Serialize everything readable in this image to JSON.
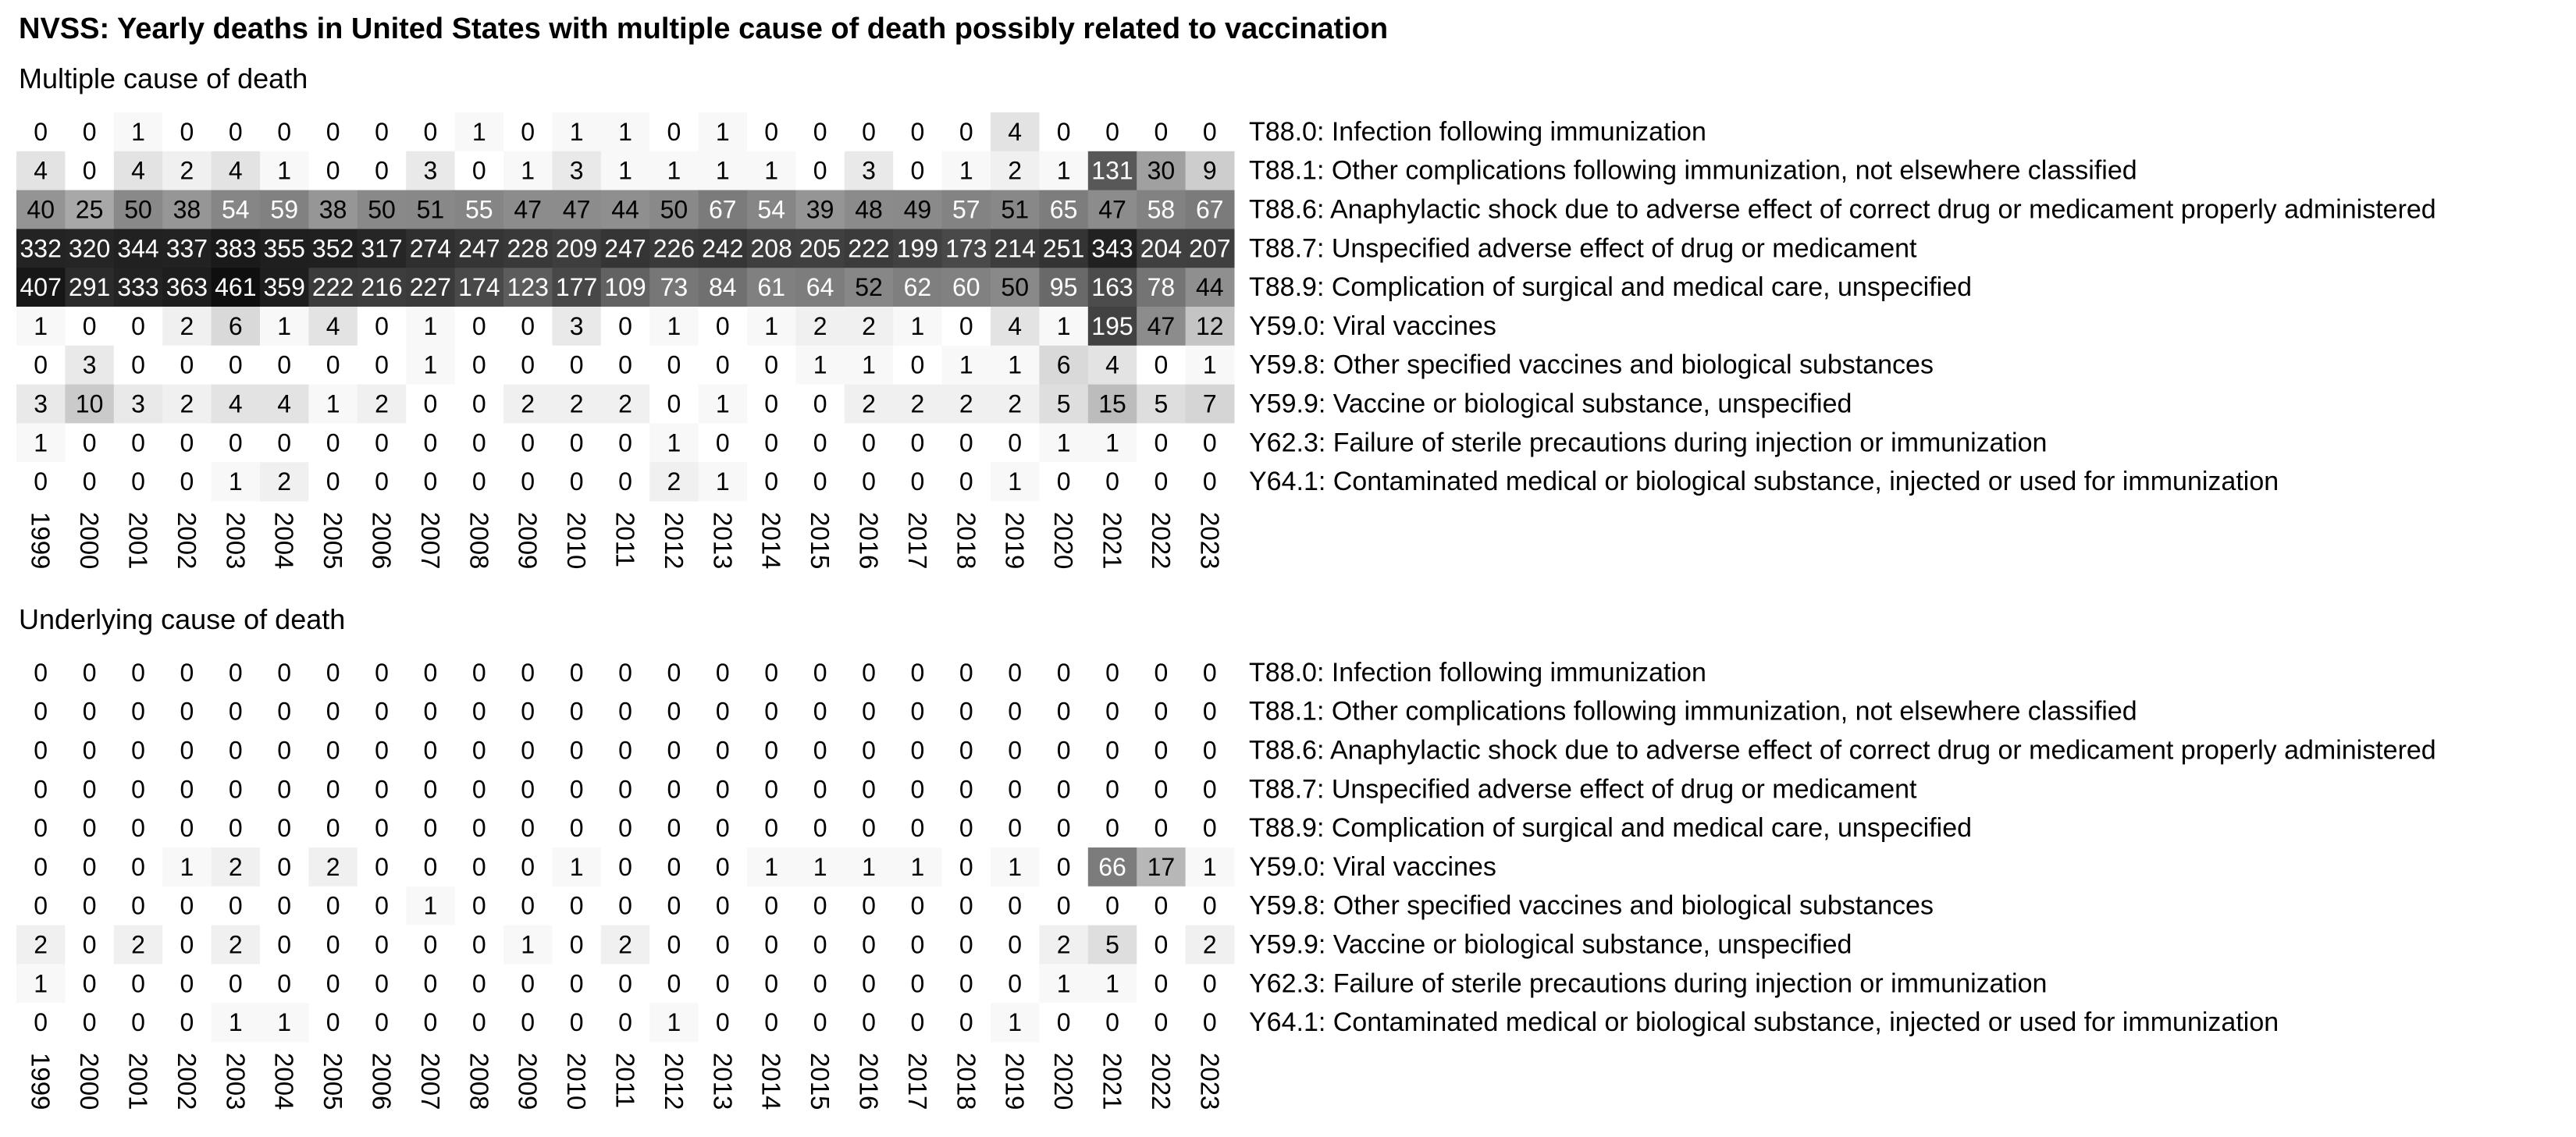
{
  "title": "NVSS: Yearly deaths in United States with multiple cause of death possibly related to vaccination",
  "chart_data": [
    {
      "type": "heatmap",
      "title": "Multiple cause of death",
      "x": [
        "1999",
        "2000",
        "2001",
        "2002",
        "2003",
        "2004",
        "2005",
        "2006",
        "2007",
        "2008",
        "2009",
        "2010",
        "2011",
        "2012",
        "2013",
        "2014",
        "2015",
        "2016",
        "2017",
        "2018",
        "2019",
        "2020",
        "2021",
        "2022",
        "2023"
      ],
      "rows": [
        {
          "label": "T88.0: Infection following immunization",
          "values": [
            0,
            0,
            1,
            0,
            0,
            0,
            0,
            0,
            0,
            1,
            0,
            1,
            1,
            0,
            1,
            0,
            0,
            0,
            0,
            0,
            4,
            0,
            0,
            0,
            0
          ]
        },
        {
          "label": "T88.1: Other complications following immunization, not elsewhere classified",
          "values": [
            4,
            0,
            4,
            2,
            4,
            1,
            0,
            0,
            3,
            0,
            1,
            3,
            1,
            1,
            1,
            1,
            0,
            3,
            0,
            1,
            2,
            1,
            131,
            30,
            9
          ]
        },
        {
          "label": "T88.6: Anaphylactic shock due to adverse effect of correct drug or medicament properly administered",
          "values": [
            40,
            25,
            50,
            38,
            54,
            59,
            38,
            50,
            51,
            55,
            47,
            47,
            44,
            50,
            67,
            54,
            39,
            48,
            49,
            57,
            51,
            65,
            47,
            58,
            67
          ]
        },
        {
          "label": "T88.7: Unspecified adverse effect of drug or medicament",
          "values": [
            332,
            320,
            344,
            337,
            383,
            355,
            352,
            317,
            274,
            247,
            228,
            209,
            247,
            226,
            242,
            208,
            205,
            222,
            199,
            173,
            214,
            251,
            343,
            204,
            207
          ]
        },
        {
          "label": "T88.9: Complication of surgical and medical care, unspecified",
          "values": [
            407,
            291,
            333,
            363,
            461,
            359,
            222,
            216,
            227,
            174,
            123,
            177,
            109,
            73,
            84,
            61,
            64,
            52,
            62,
            60,
            50,
            95,
            163,
            78,
            44
          ]
        },
        {
          "label": "Y59.0: Viral vaccines",
          "values": [
            1,
            0,
            0,
            2,
            6,
            1,
            4,
            0,
            1,
            0,
            0,
            3,
            0,
            1,
            0,
            1,
            2,
            2,
            1,
            0,
            4,
            1,
            195,
            47,
            12
          ]
        },
        {
          "label": "Y59.8: Other specified vaccines and biological substances",
          "values": [
            0,
            3,
            0,
            0,
            0,
            0,
            0,
            0,
            1,
            0,
            0,
            0,
            0,
            0,
            0,
            0,
            1,
            1,
            0,
            1,
            1,
            6,
            4,
            0,
            1
          ]
        },
        {
          "label": "Y59.9: Vaccine or biological substance, unspecified",
          "values": [
            3,
            10,
            3,
            2,
            4,
            4,
            1,
            2,
            0,
            0,
            2,
            2,
            2,
            0,
            1,
            0,
            0,
            2,
            2,
            2,
            2,
            5,
            15,
            5,
            7
          ]
        },
        {
          "label": "Y62.3: Failure of sterile precautions during injection or immunization",
          "values": [
            1,
            0,
            0,
            0,
            0,
            0,
            0,
            0,
            0,
            0,
            0,
            0,
            0,
            1,
            0,
            0,
            0,
            0,
            0,
            0,
            0,
            1,
            1,
            0,
            0
          ]
        },
        {
          "label": "Y64.1: Contaminated medical or biological substance, injected or used for immunization",
          "values": [
            0,
            0,
            0,
            0,
            1,
            2,
            0,
            0,
            0,
            0,
            0,
            0,
            0,
            2,
            1,
            0,
            0,
            0,
            0,
            0,
            1,
            0,
            0,
            0,
            0
          ]
        }
      ]
    },
    {
      "type": "heatmap",
      "title": "Underlying cause of death",
      "x": [
        "1999",
        "2000",
        "2001",
        "2002",
        "2003",
        "2004",
        "2005",
        "2006",
        "2007",
        "2008",
        "2009",
        "2010",
        "2011",
        "2012",
        "2013",
        "2014",
        "2015",
        "2016",
        "2017",
        "2018",
        "2019",
        "2020",
        "2021",
        "2022",
        "2023"
      ],
      "rows": [
        {
          "label": "T88.0: Infection following immunization",
          "values": [
            0,
            0,
            0,
            0,
            0,
            0,
            0,
            0,
            0,
            0,
            0,
            0,
            0,
            0,
            0,
            0,
            0,
            0,
            0,
            0,
            0,
            0,
            0,
            0,
            0
          ]
        },
        {
          "label": "T88.1: Other complications following immunization, not elsewhere classified",
          "values": [
            0,
            0,
            0,
            0,
            0,
            0,
            0,
            0,
            0,
            0,
            0,
            0,
            0,
            0,
            0,
            0,
            0,
            0,
            0,
            0,
            0,
            0,
            0,
            0,
            0
          ]
        },
        {
          "label": "T88.6: Anaphylactic shock due to adverse effect of correct drug or medicament properly administered",
          "values": [
            0,
            0,
            0,
            0,
            0,
            0,
            0,
            0,
            0,
            0,
            0,
            0,
            0,
            0,
            0,
            0,
            0,
            0,
            0,
            0,
            0,
            0,
            0,
            0,
            0
          ]
        },
        {
          "label": "T88.7: Unspecified adverse effect of drug or medicament",
          "values": [
            0,
            0,
            0,
            0,
            0,
            0,
            0,
            0,
            0,
            0,
            0,
            0,
            0,
            0,
            0,
            0,
            0,
            0,
            0,
            0,
            0,
            0,
            0,
            0,
            0
          ]
        },
        {
          "label": "T88.9: Complication of surgical and medical care, unspecified",
          "values": [
            0,
            0,
            0,
            0,
            0,
            0,
            0,
            0,
            0,
            0,
            0,
            0,
            0,
            0,
            0,
            0,
            0,
            0,
            0,
            0,
            0,
            0,
            0,
            0,
            0
          ]
        },
        {
          "label": "Y59.0: Viral vaccines",
          "values": [
            0,
            0,
            0,
            1,
            2,
            0,
            2,
            0,
            0,
            0,
            0,
            1,
            0,
            0,
            0,
            1,
            1,
            1,
            1,
            0,
            1,
            0,
            66,
            17,
            1
          ]
        },
        {
          "label": "Y59.8: Other specified vaccines and biological substances",
          "values": [
            0,
            0,
            0,
            0,
            0,
            0,
            0,
            0,
            1,
            0,
            0,
            0,
            0,
            0,
            0,
            0,
            0,
            0,
            0,
            0,
            0,
            0,
            0,
            0,
            0
          ]
        },
        {
          "label": "Y59.9: Vaccine or biological substance, unspecified",
          "values": [
            2,
            0,
            2,
            0,
            2,
            0,
            0,
            0,
            0,
            0,
            1,
            0,
            2,
            0,
            0,
            0,
            0,
            0,
            0,
            0,
            0,
            2,
            5,
            0,
            2
          ]
        },
        {
          "label": "Y62.3: Failure of sterile precautions during injection or immunization",
          "values": [
            1,
            0,
            0,
            0,
            0,
            0,
            0,
            0,
            0,
            0,
            0,
            0,
            0,
            0,
            0,
            0,
            0,
            0,
            0,
            0,
            0,
            1,
            1,
            0,
            0
          ]
        },
        {
          "label": "Y64.1: Contaminated medical or biological substance, injected or used for immunization",
          "values": [
            0,
            0,
            0,
            0,
            1,
            1,
            0,
            0,
            0,
            0,
            0,
            0,
            0,
            1,
            0,
            0,
            0,
            0,
            0,
            0,
            1,
            0,
            0,
            0,
            0
          ]
        }
      ]
    }
  ]
}
